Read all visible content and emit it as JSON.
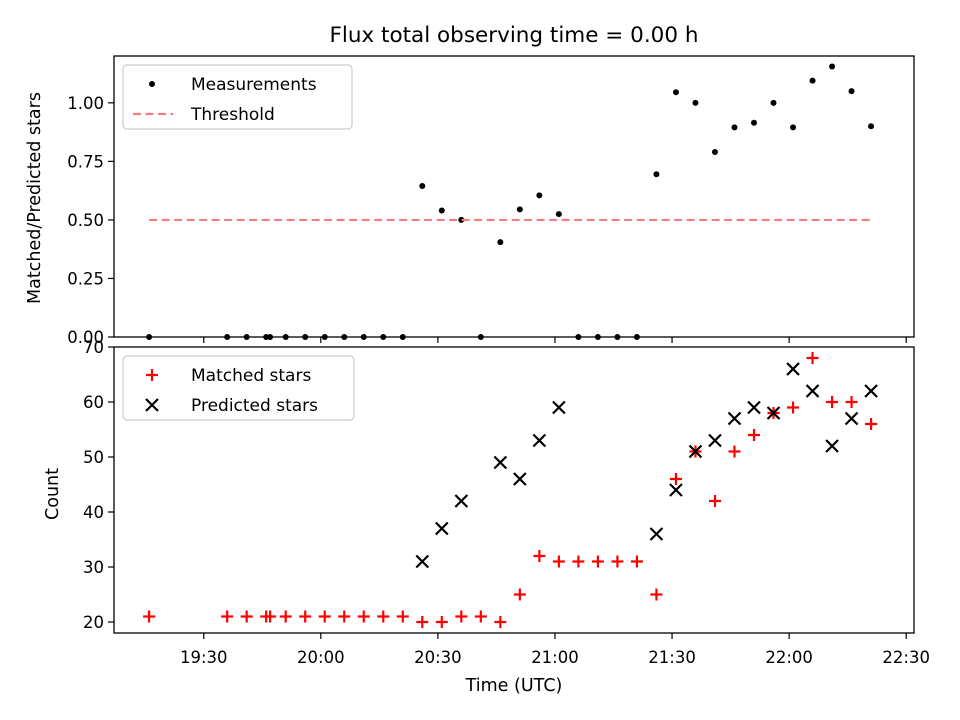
{
  "chart_data": [
    {
      "type": "scatter",
      "title": "Flux total observing time = 0.00 h",
      "xlabel": "",
      "ylabel": "Matched/Predicted stars",
      "xlim": [
        "19:07",
        "22:32"
      ],
      "ylim": [
        0,
        1.2
      ],
      "yticks": [
        "0.00",
        "0.25",
        "0.50",
        "0.75",
        "1.00"
      ],
      "legend": "top-left",
      "series": [
        {
          "name": "Measurements",
          "style": "dot",
          "color": "#000000",
          "points": [
            [
              "19:16",
              0.0
            ],
            [
              "19:36",
              0.0
            ],
            [
              "19:41",
              0.0
            ],
            [
              "19:46",
              0.0
            ],
            [
              "19:47",
              0.0
            ],
            [
              "19:51",
              0.0
            ],
            [
              "19:56",
              0.0
            ],
            [
              "20:01",
              0.0
            ],
            [
              "20:06",
              0.0
            ],
            [
              "20:11",
              0.0
            ],
            [
              "20:16",
              0.0
            ],
            [
              "20:21",
              0.0
            ],
            [
              "20:26",
              0.645
            ],
            [
              "20:31",
              0.54
            ],
            [
              "20:36",
              0.5
            ],
            [
              "20:41",
              0.0
            ],
            [
              "20:46",
              0.405
            ],
            [
              "20:51",
              0.545
            ],
            [
              "20:56",
              0.605
            ],
            [
              "21:01",
              0.525
            ],
            [
              "21:06",
              0.0
            ],
            [
              "21:11",
              0.0
            ],
            [
              "21:16",
              0.0
            ],
            [
              "21:21",
              0.0
            ],
            [
              "21:26",
              0.695
            ],
            [
              "21:31",
              1.045
            ],
            [
              "21:36",
              1.0
            ],
            [
              "21:41",
              0.79
            ],
            [
              "21:46",
              0.895
            ],
            [
              "21:51",
              0.915
            ],
            [
              "21:56",
              1.0
            ],
            [
              "22:01",
              0.895
            ],
            [
              "22:06",
              1.095
            ],
            [
              "22:11",
              1.155
            ],
            [
              "22:16",
              1.05
            ],
            [
              "22:21",
              0.9
            ]
          ]
        },
        {
          "name": "Threshold",
          "style": "dashed-line",
          "color": "#f08080",
          "points": [
            [
              "19:16",
              0.5
            ],
            [
              "22:21",
              0.5
            ]
          ]
        }
      ]
    },
    {
      "type": "scatter",
      "title": "",
      "xlabel": "Time (UTC)",
      "ylabel": "Count",
      "xlim": [
        "19:07",
        "22:32"
      ],
      "ylim": [
        18,
        70
      ],
      "yticks": [
        "20",
        "30",
        "40",
        "50",
        "60",
        "70"
      ],
      "xticks": [
        "19:30",
        "20:00",
        "20:30",
        "21:00",
        "21:30",
        "22:00",
        "22:30"
      ],
      "legend": "top-left",
      "series": [
        {
          "name": "Matched stars",
          "style": "plus",
          "color": "#ff0000",
          "points": [
            [
              "19:16",
              21
            ],
            [
              "19:36",
              21
            ],
            [
              "19:41",
              21
            ],
            [
              "19:46",
              21
            ],
            [
              "19:47",
              21
            ],
            [
              "19:51",
              21
            ],
            [
              "19:56",
              21
            ],
            [
              "20:01",
              21
            ],
            [
              "20:06",
              21
            ],
            [
              "20:11",
              21
            ],
            [
              "20:16",
              21
            ],
            [
              "20:21",
              21
            ],
            [
              "20:26",
              20
            ],
            [
              "20:31",
              20
            ],
            [
              "20:36",
              21
            ],
            [
              "20:41",
              21
            ],
            [
              "20:46",
              20
            ],
            [
              "20:51",
              25
            ],
            [
              "20:56",
              32
            ],
            [
              "21:01",
              31
            ],
            [
              "21:06",
              31
            ],
            [
              "21:11",
              31
            ],
            [
              "21:16",
              31
            ],
            [
              "21:21",
              31
            ],
            [
              "21:26",
              25
            ],
            [
              "21:31",
              46
            ],
            [
              "21:36",
              51
            ],
            [
              "21:41",
              42
            ],
            [
              "21:46",
              51
            ],
            [
              "21:51",
              54
            ],
            [
              "21:56",
              58
            ],
            [
              "22:01",
              59
            ],
            [
              "22:06",
              68
            ],
            [
              "22:11",
              60
            ],
            [
              "22:16",
              60
            ],
            [
              "22:21",
              56
            ]
          ]
        },
        {
          "name": "Predicted stars",
          "style": "x",
          "color": "#000000",
          "points": [
            [
              "20:26",
              31
            ],
            [
              "20:31",
              37
            ],
            [
              "20:36",
              42
            ],
            [
              "20:46",
              49
            ],
            [
              "20:51",
              46
            ],
            [
              "20:56",
              53
            ],
            [
              "21:01",
              59
            ],
            [
              "21:26",
              36
            ],
            [
              "21:31",
              44
            ],
            [
              "21:36",
              51
            ],
            [
              "21:41",
              53
            ],
            [
              "21:46",
              57
            ],
            [
              "21:51",
              59
            ],
            [
              "21:56",
              58
            ],
            [
              "22:01",
              66
            ],
            [
              "22:06",
              62
            ],
            [
              "22:11",
              52
            ],
            [
              "22:16",
              57
            ],
            [
              "22:21",
              62
            ]
          ]
        }
      ]
    }
  ]
}
